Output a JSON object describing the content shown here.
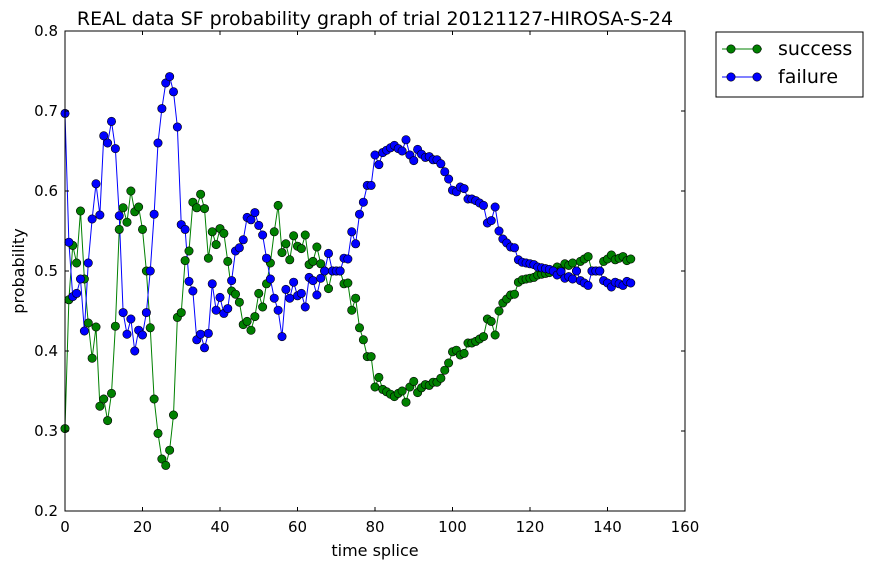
{
  "chart_data": {
    "type": "line",
    "title": "REAL data SF probability graph of trial 20121127-HIROSA-S-24",
    "xlabel": "time splice",
    "ylabel": "probability",
    "xlim": [
      0,
      160
    ],
    "ylim": [
      0.2,
      0.8
    ],
    "xticks": [
      "0",
      "20",
      "40",
      "60",
      "80",
      "100",
      "120",
      "140",
      "160"
    ],
    "yticks": [
      "0.2",
      "0.3",
      "0.4",
      "0.5",
      "0.6",
      "0.7",
      "0.8"
    ],
    "grid": false,
    "legend": {
      "position": "outside-top-right"
    },
    "x": [
      0,
      1,
      2,
      3,
      4,
      5,
      6,
      7,
      8,
      9,
      10,
      11,
      12,
      13,
      14,
      15,
      16,
      17,
      18,
      19,
      20,
      21,
      22,
      23,
      24,
      25,
      26,
      27,
      28,
      29,
      30,
      31,
      32,
      33,
      34,
      35,
      36,
      37,
      38,
      39,
      40,
      41,
      42,
      43,
      44,
      45,
      46,
      47,
      48,
      49,
      50,
      51,
      52,
      53,
      54,
      55,
      56,
      57,
      58,
      59,
      60,
      61,
      62,
      63,
      64,
      65,
      66,
      67,
      68,
      69,
      70,
      71,
      72,
      73,
      74,
      75,
      76,
      77,
      78,
      79,
      80,
      81,
      82,
      83,
      84,
      85,
      86,
      87,
      88,
      89,
      90,
      91,
      92,
      93,
      94,
      95,
      96,
      97,
      98,
      99,
      100,
      101,
      102,
      103,
      104,
      105,
      106,
      107,
      108,
      109,
      110,
      111,
      112,
      113,
      114,
      115,
      116,
      117,
      118,
      119,
      120,
      121,
      122,
      123,
      124,
      125,
      126,
      127,
      128,
      129,
      130,
      131,
      132,
      133,
      134,
      135,
      136,
      137,
      138,
      139,
      140,
      141,
      142,
      143,
      144,
      145,
      146
    ],
    "series": [
      {
        "name": "success",
        "color": "#008000",
        "values": [
          0.303,
          0.464,
          0.532,
          0.51,
          0.575,
          0.49,
          0.435,
          0.391,
          0.43,
          0.331,
          0.34,
          0.313,
          0.347,
          0.431,
          0.552,
          0.579,
          0.561,
          0.6,
          0.574,
          0.58,
          0.552,
          0.5,
          0.429,
          0.34,
          0.297,
          0.265,
          0.257,
          0.276,
          0.32,
          0.442,
          0.448,
          0.513,
          0.525,
          0.586,
          0.579,
          0.596,
          0.578,
          0.516,
          0.549,
          0.533,
          0.553,
          0.547,
          0.512,
          0.475,
          0.471,
          0.461,
          0.433,
          0.437,
          0.426,
          0.443,
          0.472,
          0.455,
          0.484,
          0.51,
          0.549,
          0.582,
          0.523,
          0.534,
          0.514,
          0.544,
          0.531,
          0.528,
          0.545,
          0.508,
          0.512,
          0.53,
          0.509,
          0.5,
          0.478,
          0.5,
          0.5,
          0.5,
          0.484,
          0.485,
          0.451,
          0.466,
          0.429,
          0.414,
          0.393,
          0.393,
          0.355,
          0.367,
          0.352,
          0.349,
          0.346,
          0.343,
          0.347,
          0.35,
          0.336,
          0.355,
          0.362,
          0.348,
          0.354,
          0.358,
          0.357,
          0.361,
          0.361,
          0.366,
          0.376,
          0.385,
          0.399,
          0.401,
          0.395,
          0.397,
          0.41,
          0.41,
          0.412,
          0.415,
          0.418,
          0.44,
          0.437,
          0.42,
          0.45,
          0.46,
          0.465,
          0.47,
          0.471,
          0.486,
          0.489,
          0.49,
          0.491,
          0.492,
          0.495,
          0.496,
          0.497,
          0.498,
          0.5,
          0.505,
          0.501,
          0.509,
          0.507,
          0.51,
          0.5,
          0.512,
          0.515,
          0.518,
          0.5,
          0.5,
          0.5,
          0.512,
          0.515,
          0.52,
          0.514,
          0.516,
          0.518,
          0.513,
          0.515
        ]
      },
      {
        "name": "failure",
        "color": "#0000ff",
        "values": [
          0.697,
          0.536,
          0.468,
          0.472,
          0.49,
          0.425,
          0.51,
          0.565,
          0.609,
          0.57,
          0.669,
          0.66,
          0.687,
          0.653,
          0.569,
          0.448,
          0.421,
          0.44,
          0.4,
          0.426,
          0.42,
          0.448,
          0.5,
          0.571,
          0.66,
          0.703,
          0.735,
          0.743,
          0.724,
          0.68,
          0.558,
          0.552,
          0.487,
          0.475,
          0.414,
          0.421,
          0.404,
          0.422,
          0.484,
          0.451,
          0.467,
          0.447,
          0.453,
          0.488,
          0.525,
          0.529,
          0.539,
          0.567,
          0.564,
          0.573,
          0.557,
          0.545,
          0.516,
          0.49,
          0.466,
          0.451,
          0.418,
          0.477,
          0.466,
          0.486,
          0.469,
          0.472,
          0.455,
          0.492,
          0.488,
          0.47,
          0.491,
          0.5,
          0.522,
          0.5,
          0.5,
          0.5,
          0.516,
          0.515,
          0.549,
          0.534,
          0.571,
          0.586,
          0.607,
          0.607,
          0.645,
          0.633,
          0.648,
          0.651,
          0.654,
          0.657,
          0.653,
          0.65,
          0.664,
          0.645,
          0.638,
          0.652,
          0.646,
          0.642,
          0.643,
          0.639,
          0.639,
          0.634,
          0.624,
          0.615,
          0.601,
          0.599,
          0.605,
          0.603,
          0.59,
          0.59,
          0.588,
          0.585,
          0.582,
          0.56,
          0.563,
          0.58,
          0.55,
          0.54,
          0.535,
          0.53,
          0.529,
          0.514,
          0.511,
          0.51,
          0.509,
          0.508,
          0.505,
          0.504,
          0.503,
          0.502,
          0.5,
          0.495,
          0.499,
          0.491,
          0.493,
          0.49,
          0.5,
          0.488,
          0.485,
          0.482,
          0.5,
          0.5,
          0.5,
          0.488,
          0.485,
          0.48,
          0.486,
          0.484,
          0.482,
          0.487,
          0.485
        ]
      }
    ]
  }
}
